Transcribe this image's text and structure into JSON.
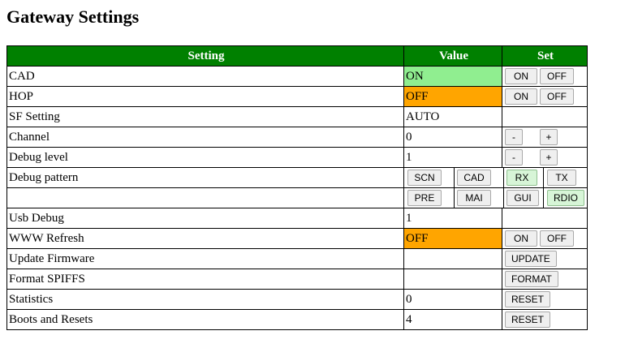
{
  "page": {
    "title": "Gateway Settings"
  },
  "table": {
    "headers": {
      "setting": "Setting",
      "value": "Value",
      "set": "Set"
    },
    "rows": {
      "cad": {
        "label": "CAD",
        "value": "ON",
        "on": "ON",
        "off": "OFF"
      },
      "hop": {
        "label": "HOP",
        "value": "OFF",
        "on": "ON",
        "off": "OFF"
      },
      "sf": {
        "label": "SF Setting",
        "value": "AUTO"
      },
      "channel": {
        "label": "Channel",
        "value": "0",
        "minus": "-",
        "plus": "+"
      },
      "debug_level": {
        "label": "Debug level",
        "value": "1",
        "minus": "-",
        "plus": "+"
      },
      "debug_pattern": {
        "label": "Debug pattern",
        "row1": [
          "SCN",
          "CAD",
          "RX",
          "TX"
        ],
        "row2": [
          "PRE",
          "MAI",
          "GUI",
          "RDIO"
        ]
      },
      "usb_debug": {
        "label": "Usb Debug",
        "value": "1"
      },
      "www_refresh": {
        "label": "WWW Refresh",
        "value": "OFF",
        "on": "ON",
        "off": "OFF"
      },
      "update_firmware": {
        "label": "Update Firmware",
        "button": "UPDATE"
      },
      "format_spiffs": {
        "label": "Format SPIFFS",
        "button": "FORMAT"
      },
      "statistics": {
        "label": "Statistics",
        "value": "0",
        "button": "RESET"
      },
      "boots_resets": {
        "label": "Boots and Resets",
        "value": "4",
        "button": "RESET"
      }
    }
  },
  "colors": {
    "header_bg": "#008000",
    "on_bg": "#90ee90",
    "off_bg": "#ffa500"
  }
}
